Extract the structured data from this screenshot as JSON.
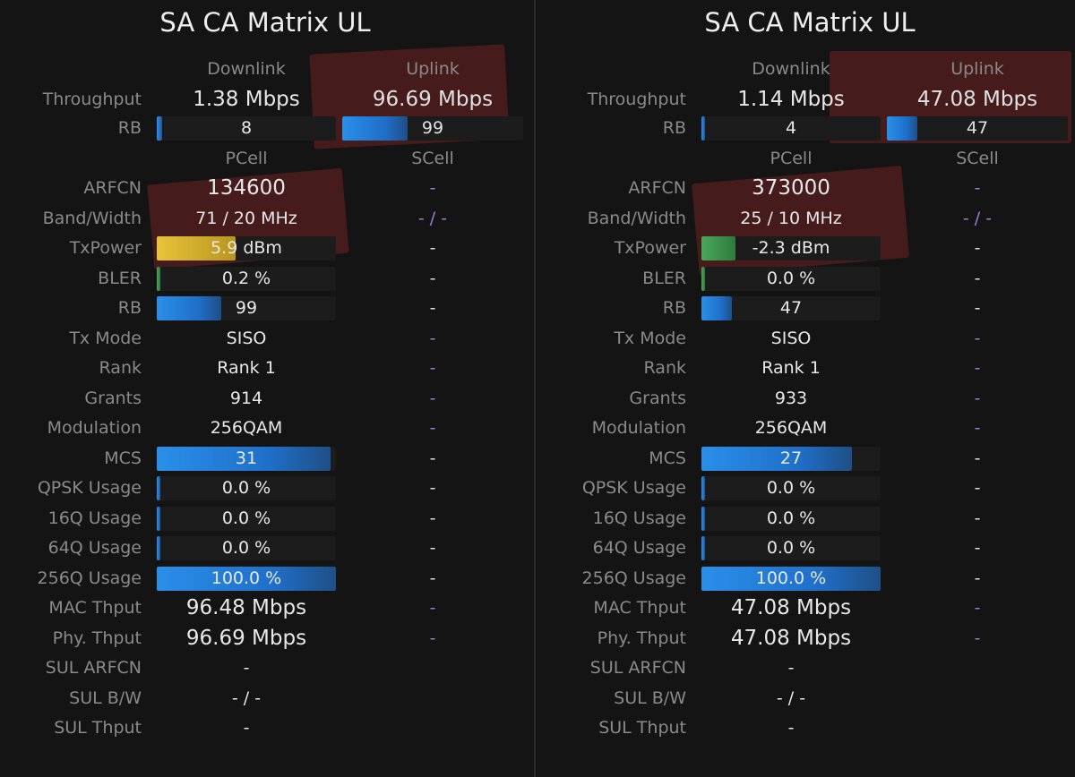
{
  "panels": [
    {
      "title": "SA CA Matrix UL",
      "col_headers": {
        "downlink": "Downlink",
        "uplink": "Uplink",
        "pcell": "PCell",
        "scell": "SCell"
      },
      "throughput": {
        "label": "Throughput",
        "downlink": "1.38 Mbps",
        "uplink": "96.69 Mbps"
      },
      "rb_top": {
        "label": "RB",
        "downlink": "8",
        "uplink": "99",
        "downlink_level": 0.03,
        "uplink_level": 0.36
      },
      "rows": [
        {
          "label": "ARFCN",
          "pcell": "134600",
          "scell": "-",
          "big": true,
          "scell_purple": true
        },
        {
          "label": "Band/Width",
          "pcell": "71 / 20 MHz",
          "scell": "- / -",
          "scell_purple": true
        },
        {
          "label": "TxPower",
          "pcell": "5.9 dBm",
          "scell": "-",
          "bar": "yellow",
          "level": 0.44
        },
        {
          "label": "BLER",
          "pcell": "0.2 %",
          "scell": "-",
          "bar": "green",
          "level": 0.02
        },
        {
          "label": "RB",
          "pcell": "99",
          "scell": "-",
          "bar": "blue",
          "level": 0.36
        },
        {
          "label": "Tx Mode",
          "pcell": "SISO",
          "scell": "-",
          "scell_purple": true
        },
        {
          "label": "Rank",
          "pcell": "Rank 1",
          "scell": "-",
          "scell_purple": true
        },
        {
          "label": "Grants",
          "pcell": "914",
          "scell": "-",
          "scell_purple": true
        },
        {
          "label": "Modulation",
          "pcell": "256QAM",
          "scell": "-",
          "scell_purple": true
        },
        {
          "label": "MCS",
          "pcell": "31",
          "scell": "-",
          "bar": "blue",
          "level": 0.97
        },
        {
          "label": "QPSK Usage",
          "pcell": "0.0 %",
          "scell": "-",
          "bar": "blue",
          "level": 0.02
        },
        {
          "label": "16Q Usage",
          "pcell": "0.0 %",
          "scell": "-",
          "bar": "blue",
          "level": 0.02
        },
        {
          "label": "64Q Usage",
          "pcell": "0.0 %",
          "scell": "-",
          "bar": "blue",
          "level": 0.02
        },
        {
          "label": "256Q Usage",
          "pcell": "100.0 %",
          "scell": "-",
          "bar": "blue",
          "level": 1.0
        },
        {
          "label": "MAC Thput",
          "pcell": "96.48 Mbps",
          "scell": "-",
          "big": true,
          "scell_purple": true
        },
        {
          "label": "Phy. Thput",
          "pcell": "96.69 Mbps",
          "scell": "-",
          "big": true,
          "scell_purple": true
        },
        {
          "label": "SUL ARFCN",
          "pcell": "-",
          "scell": ""
        },
        {
          "label": "SUL B/W",
          "pcell": "- / -",
          "scell": ""
        },
        {
          "label": "SUL Thput",
          "pcell": "-",
          "scell": ""
        }
      ]
    },
    {
      "title": "SA CA Matrix UL",
      "col_headers": {
        "downlink": "Downlink",
        "uplink": "Uplink",
        "pcell": "PCell",
        "scell": "SCell"
      },
      "throughput": {
        "label": "Throughput",
        "downlink": "1.14 Mbps",
        "uplink": "47.08 Mbps"
      },
      "rb_top": {
        "label": "RB",
        "downlink": "4",
        "uplink": "47",
        "downlink_level": 0.02,
        "uplink_level": 0.17
      },
      "rows": [
        {
          "label": "ARFCN",
          "pcell": "373000",
          "scell": "-",
          "big": true,
          "scell_purple": true
        },
        {
          "label": "Band/Width",
          "pcell": "25 / 10 MHz",
          "scell": "- / -",
          "scell_purple": true
        },
        {
          "label": "TxPower",
          "pcell": "-2.3 dBm",
          "scell": "-",
          "bar": "green",
          "level": 0.19
        },
        {
          "label": "BLER",
          "pcell": "0.0 %",
          "scell": "-",
          "bar": "green",
          "level": 0.02
        },
        {
          "label": "RB",
          "pcell": "47",
          "scell": "-",
          "bar": "blue",
          "level": 0.17
        },
        {
          "label": "Tx Mode",
          "pcell": "SISO",
          "scell": "-",
          "scell_purple": true
        },
        {
          "label": "Rank",
          "pcell": "Rank 1",
          "scell": "-",
          "scell_purple": true
        },
        {
          "label": "Grants",
          "pcell": "933",
          "scell": "-",
          "scell_purple": true
        },
        {
          "label": "Modulation",
          "pcell": "256QAM",
          "scell": "-",
          "scell_purple": true
        },
        {
          "label": "MCS",
          "pcell": "27",
          "scell": "-",
          "bar": "blue",
          "level": 0.84
        },
        {
          "label": "QPSK Usage",
          "pcell": "0.0 %",
          "scell": "-",
          "bar": "blue",
          "level": 0.02
        },
        {
          "label": "16Q Usage",
          "pcell": "0.0 %",
          "scell": "-",
          "bar": "blue",
          "level": 0.02
        },
        {
          "label": "64Q Usage",
          "pcell": "0.0 %",
          "scell": "-",
          "bar": "blue",
          "level": 0.02
        },
        {
          "label": "256Q Usage",
          "pcell": "100.0 %",
          "scell": "-",
          "bar": "blue",
          "level": 1.0
        },
        {
          "label": "MAC Thput",
          "pcell": "47.08 Mbps",
          "scell": "-",
          "big": true,
          "scell_purple": true
        },
        {
          "label": "Phy. Thput",
          "pcell": "47.08 Mbps",
          "scell": "-",
          "big": true,
          "scell_purple": true
        },
        {
          "label": "SUL ARFCN",
          "pcell": "-",
          "scell": ""
        },
        {
          "label": "SUL B/W",
          "pcell": "- / -",
          "scell": ""
        },
        {
          "label": "SUL Thput",
          "pcell": "-",
          "scell": ""
        }
      ]
    }
  ],
  "colors": {
    "background": "#141414",
    "bar_blue": "#2a8fea",
    "bar_yellow": "#e8c43a",
    "bar_green": "#4aa85a",
    "scell_purple": "#a17ad8",
    "highlight": "#962828"
  }
}
